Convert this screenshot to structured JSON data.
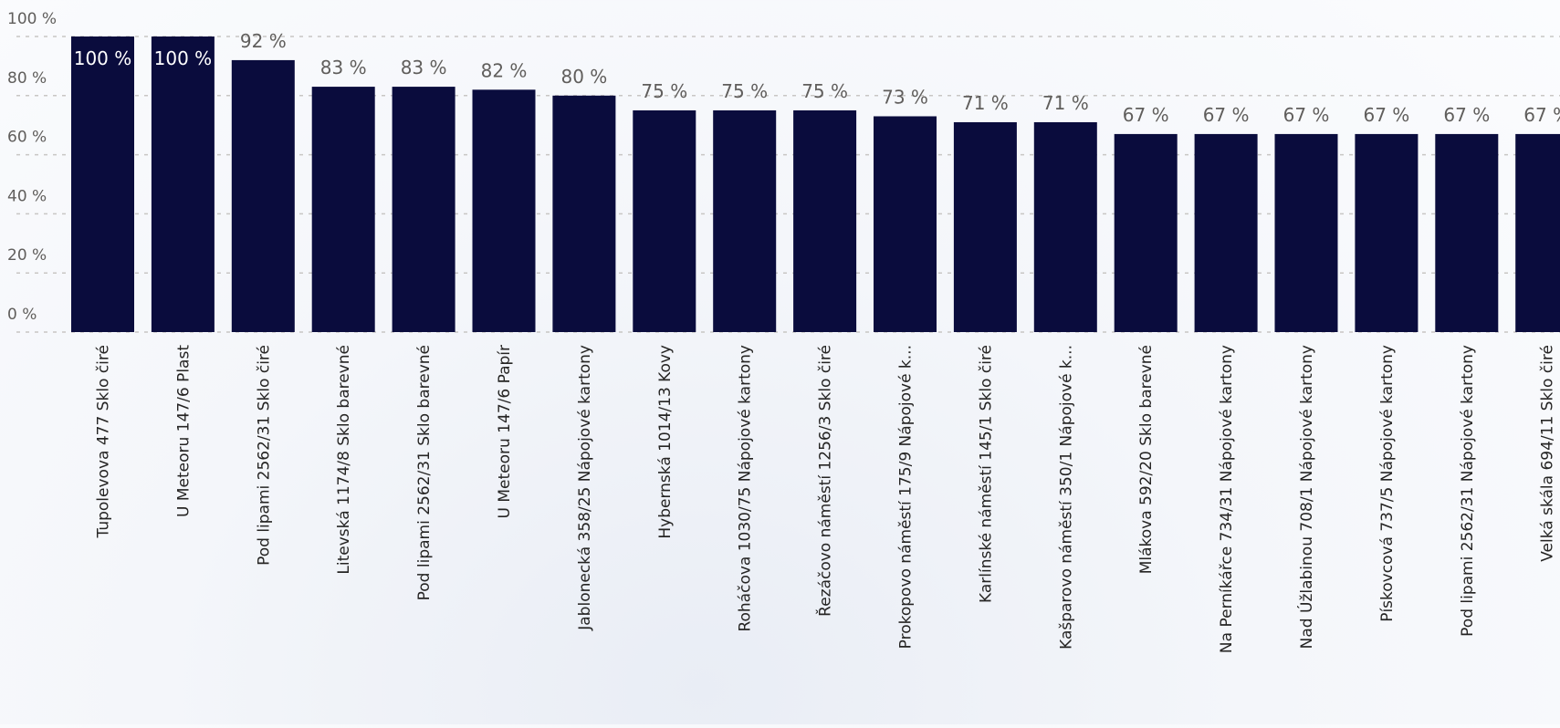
{
  "chart_data": {
    "type": "bar",
    "title": "",
    "xlabel": "",
    "ylabel": "",
    "ylim": [
      0,
      100
    ],
    "y_ticks": [
      "0 %",
      "20 %",
      "40 %",
      "60 %",
      "80 %",
      "100 %"
    ],
    "y_tick_values": [
      0,
      20,
      40,
      60,
      80,
      100
    ],
    "grid": true,
    "bar_color": "#0a0c3d",
    "categories": [
      "Tupolevova 477 Sklo čiré",
      "U Meteoru 147/6 Plast",
      "Pod lipami 2562/31 Sklo čiré",
      "Litevská 1174/8 Sklo barevné",
      "Pod lipami 2562/31 Sklo barevné",
      "U Meteoru 147/6 Papír",
      "Jablonecká 358/25 Nápojové kartony",
      "Hybernská 1014/13 Kovy",
      "Roháčova 1030/75 Nápojové kartony",
      "Řezáčovo náměstí 1256/3 Sklo čiré",
      "Prokopovo náměstí 175/9 Nápojové k...",
      "Karlínské náměstí 145/1 Sklo čiré",
      "Kašparovo náměstí 350/1 Nápojové k...",
      "Mlákova 592/20 Sklo barevné",
      "Na Perníkářce 734/31 Nápojové kartony",
      "Nad Úžlabinou 708/1 Nápojové kartony",
      "Pískovcová 737/5 Nápojové kartony",
      "Pod lipami 2562/31 Nápojové kartony",
      "Velká skála 694/11 Sklo čiré"
    ],
    "values": [
      100,
      100,
      92,
      83,
      83,
      82,
      80,
      75,
      75,
      75,
      73,
      71,
      71,
      67,
      67,
      67,
      67,
      67,
      67
    ],
    "data_labels": [
      "100 %",
      "100 %",
      "92 %",
      "83 %",
      "83 %",
      "82 %",
      "80 %",
      "75 %",
      "75 %",
      "75 %",
      "73 %",
      "71 %",
      "71 %",
      "67 %",
      "67 %",
      "67 %",
      "67 %",
      "67 %",
      "67 %"
    ]
  }
}
